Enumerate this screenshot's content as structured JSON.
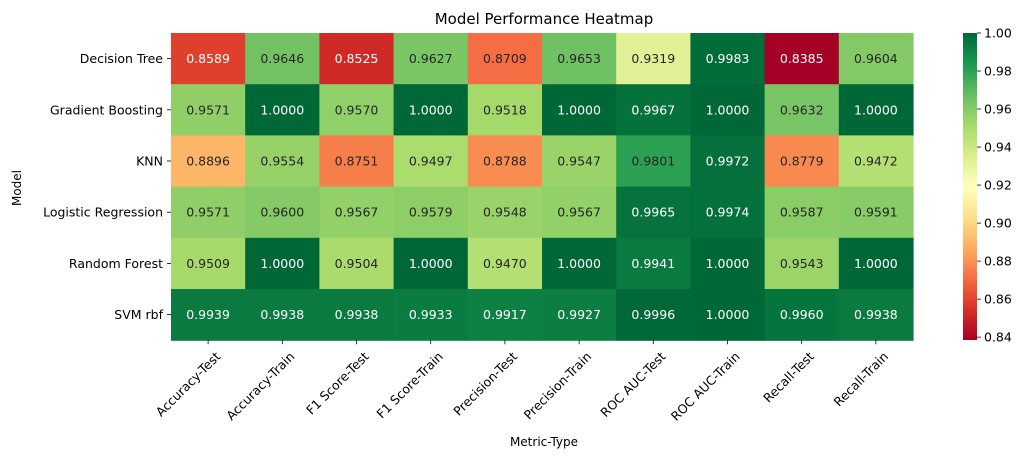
{
  "chart_data": {
    "type": "heatmap",
    "title": "Model Performance Heatmap",
    "xlabel": "Metric-Type",
    "ylabel": "Model",
    "x_categories": [
      "Accuracy-Test",
      "Accuracy-Train",
      "F1 Score-Test",
      "F1 Score-Train",
      "Precision-Test",
      "Precision-Train",
      "ROC AUC-Test",
      "ROC AUC-Train",
      "Recall-Test",
      "Recall-Train"
    ],
    "y_categories": [
      "Decision Tree",
      "Gradient Boosting",
      "KNN",
      "Logistic Regression",
      "Random Forest",
      "SVM rbf"
    ],
    "values": [
      [
        0.8589,
        0.9646,
        0.8525,
        0.9627,
        0.8709,
        0.9653,
        0.9319,
        0.9983,
        0.8385,
        0.9604
      ],
      [
        0.9571,
        1.0,
        0.957,
        1.0,
        0.9518,
        1.0,
        0.9967,
        1.0,
        0.9632,
        1.0
      ],
      [
        0.8896,
        0.9554,
        0.8751,
        0.9497,
        0.8788,
        0.9547,
        0.9801,
        0.9972,
        0.8779,
        0.9472
      ],
      [
        0.9571,
        0.96,
        0.9567,
        0.9579,
        0.9548,
        0.9567,
        0.9965,
        0.9974,
        0.9587,
        0.9591
      ],
      [
        0.9509,
        1.0,
        0.9504,
        1.0,
        0.947,
        1.0,
        0.9941,
        1.0,
        0.9543,
        1.0
      ],
      [
        0.9939,
        0.9938,
        0.9938,
        0.9933,
        0.9917,
        0.9927,
        0.9996,
        1.0,
        0.996,
        0.9938
      ]
    ],
    "value_labels": [
      [
        "0.8589",
        "0.9646",
        "0.8525",
        "0.9627",
        "0.8709",
        "0.9653",
        "0.9319",
        "0.9983",
        "0.8385",
        "0.9604"
      ],
      [
        "0.9571",
        "1.0000",
        "0.9570",
        "1.0000",
        "0.9518",
        "1.0000",
        "0.9967",
        "1.0000",
        "0.9632",
        "1.0000"
      ],
      [
        "0.8896",
        "0.9554",
        "0.8751",
        "0.9497",
        "0.8788",
        "0.9547",
        "0.9801",
        "0.9972",
        "0.8779",
        "0.9472"
      ],
      [
        "0.9571",
        "0.9600",
        "0.9567",
        "0.9579",
        "0.9548",
        "0.9567",
        "0.9965",
        "0.9974",
        "0.9587",
        "0.9591"
      ],
      [
        "0.9509",
        "1.0000",
        "0.9504",
        "1.0000",
        "0.9470",
        "1.0000",
        "0.9941",
        "1.0000",
        "0.9543",
        "1.0000"
      ],
      [
        "0.9939",
        "0.9938",
        "0.9938",
        "0.9933",
        "0.9917",
        "0.9927",
        "0.9996",
        "1.0000",
        "0.9960",
        "0.9938"
      ]
    ],
    "colormap": "RdYlGn",
    "colorbar": {
      "vmin": 0.8385,
      "vmax": 1.0,
      "ticks": [
        0.84,
        0.86,
        0.88,
        0.9,
        0.92,
        0.94,
        0.96,
        0.98,
        1.0
      ],
      "tick_labels": [
        "0.84",
        "0.86",
        "0.88",
        "0.90",
        "0.92",
        "0.94",
        "0.96",
        "0.98",
        "1.00"
      ]
    },
    "grid": false,
    "legend": "right"
  }
}
